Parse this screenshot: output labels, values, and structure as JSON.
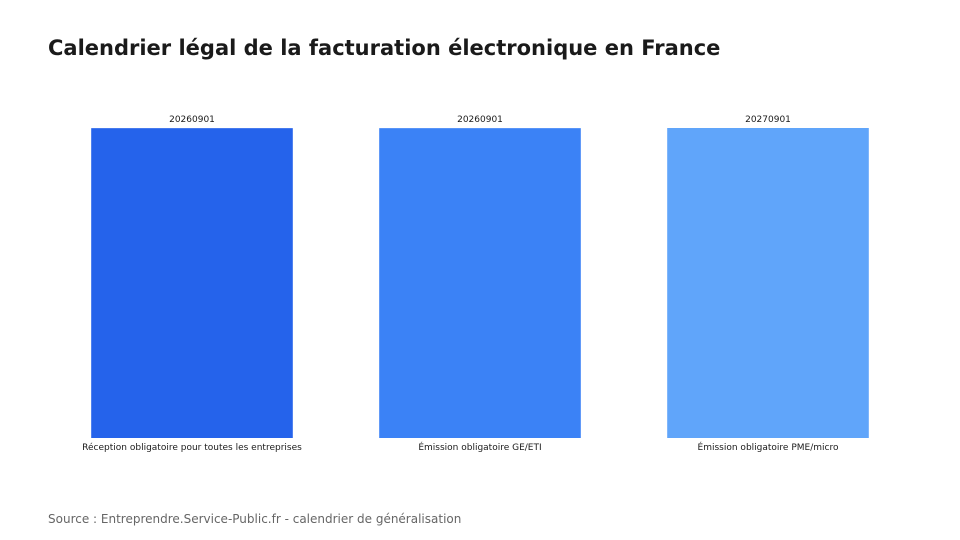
{
  "chart_data": {
    "type": "bar",
    "title": "Calendrier légal de la facturation électronique en France",
    "categories": [
      "Réception obligatoire pour toutes les entreprises",
      "Émission obligatoire GE/ETI",
      "Émission obligatoire PME/micro"
    ],
    "values": [
      20260901,
      20260901,
      20270901
    ],
    "value_labels": [
      "20260901",
      "20260901",
      "20270901"
    ],
    "colors": [
      "#2563eb",
      "#3b82f6",
      "#60a5fa"
    ],
    "xlabel": "",
    "ylabel": "",
    "grid": false,
    "legend": "none",
    "source": "Source : Entreprendre.Service-Public.fr - calendrier de généralisation"
  }
}
